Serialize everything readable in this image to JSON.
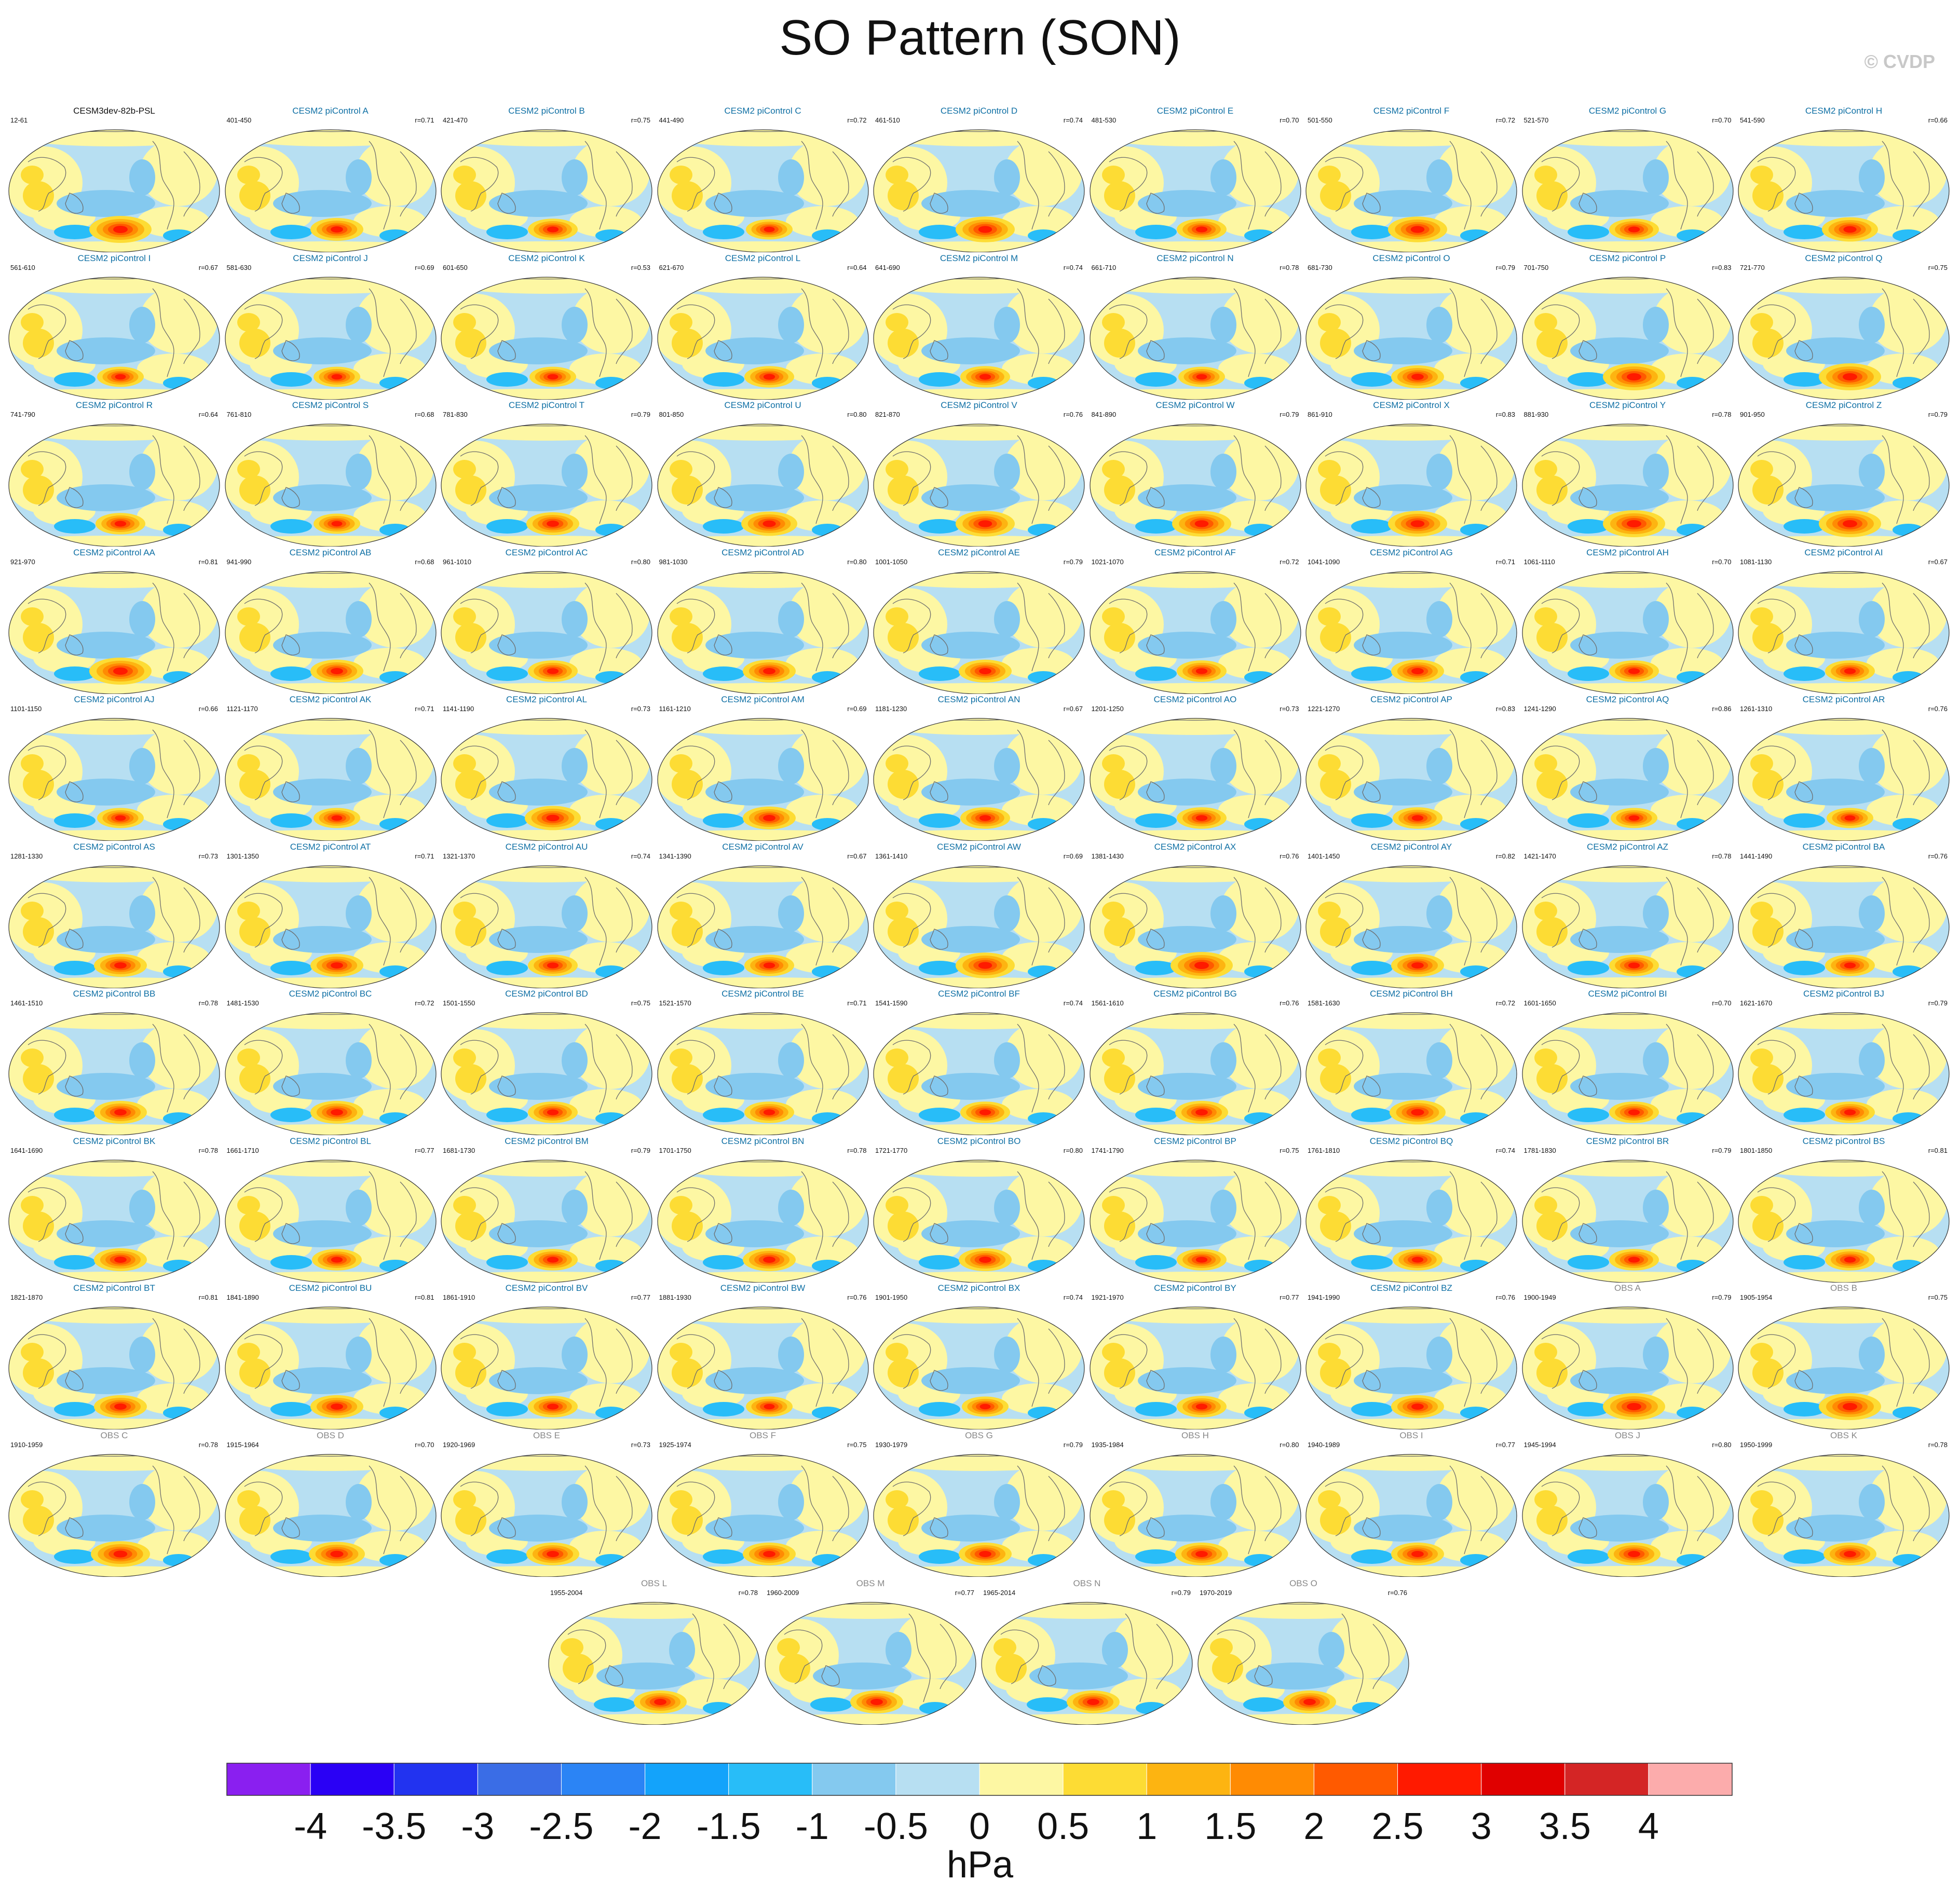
{
  "title": "SO Pattern (SON)",
  "watermark": "© CVDP",
  "panels": [
    {
      "name": "CESM3dev-82b-PSL",
      "years": "12-61",
      "corr": "",
      "kind": "model",
      "peak": 1.0
    },
    {
      "name": "CESM2 piControl A",
      "years": "401-450",
      "corr": "r=0.71",
      "kind": "pi",
      "peak": 0.85
    },
    {
      "name": "CESM2 piControl B",
      "years": "421-470",
      "corr": "r=0.75",
      "kind": "pi",
      "peak": 0.8
    },
    {
      "name": "CESM2 piControl C",
      "years": "441-490",
      "corr": "r=0.72",
      "kind": "pi",
      "peak": 0.75
    },
    {
      "name": "CESM2 piControl D",
      "years": "461-510",
      "corr": "r=0.74",
      "kind": "pi",
      "peak": 0.95
    },
    {
      "name": "CESM2 piControl E",
      "years": "481-530",
      "corr": "r=0.70",
      "kind": "pi",
      "peak": 0.8
    },
    {
      "name": "CESM2 piControl F",
      "years": "501-550",
      "corr": "r=0.72",
      "kind": "pi",
      "peak": 0.95
    },
    {
      "name": "CESM2 piControl G",
      "years": "521-570",
      "corr": "r=0.70",
      "kind": "pi",
      "peak": 0.8
    },
    {
      "name": "CESM2 piControl H",
      "years": "541-590",
      "corr": "r=0.66",
      "kind": "pi",
      "peak": 0.9
    },
    {
      "name": "CESM2 piControl I",
      "years": "561-610",
      "corr": "r=0.67",
      "kind": "pi",
      "peak": 0.75
    },
    {
      "name": "CESM2 piControl J",
      "years": "581-630",
      "corr": "r=0.69",
      "kind": "pi",
      "peak": 0.75
    },
    {
      "name": "CESM2 piControl K",
      "years": "601-650",
      "corr": "r=0.53",
      "kind": "pi",
      "peak": 0.75
    },
    {
      "name": "CESM2 piControl L",
      "years": "621-670",
      "corr": "r=0.64",
      "kind": "pi",
      "peak": 0.8
    },
    {
      "name": "CESM2 piControl M",
      "years": "641-690",
      "corr": "r=0.74",
      "kind": "pi",
      "peak": 0.8
    },
    {
      "name": "CESM2 piControl N",
      "years": "661-710",
      "corr": "r=0.78",
      "kind": "pi",
      "peak": 0.75
    },
    {
      "name": "CESM2 piControl O",
      "years": "681-730",
      "corr": "r=0.79",
      "kind": "pi",
      "peak": 0.85
    },
    {
      "name": "CESM2 piControl P",
      "years": "701-750",
      "corr": "r=0.83",
      "kind": "pi",
      "peak": 1.0
    },
    {
      "name": "CESM2 piControl Q",
      "years": "721-770",
      "corr": "r=0.75",
      "kind": "pi",
      "peak": 1.0
    },
    {
      "name": "CESM2 piControl R",
      "years": "741-790",
      "corr": "r=0.64",
      "kind": "pi",
      "peak": 0.8
    },
    {
      "name": "CESM2 piControl S",
      "years": "761-810",
      "corr": "r=0.68",
      "kind": "pi",
      "peak": 0.75
    },
    {
      "name": "CESM2 piControl T",
      "years": "781-830",
      "corr": "r=0.79",
      "kind": "pi",
      "peak": 0.85
    },
    {
      "name": "CESM2 piControl U",
      "years": "801-850",
      "corr": "r=0.80",
      "kind": "pi",
      "peak": 0.9
    },
    {
      "name": "CESM2 piControl V",
      "years": "821-870",
      "corr": "r=0.76",
      "kind": "pi",
      "peak": 0.95
    },
    {
      "name": "CESM2 piControl W",
      "years": "841-890",
      "corr": "r=0.79",
      "kind": "pi",
      "peak": 0.95
    },
    {
      "name": "CESM2 piControl X",
      "years": "861-910",
      "corr": "r=0.83",
      "kind": "pi",
      "peak": 0.95
    },
    {
      "name": "CESM2 piControl Y",
      "years": "881-930",
      "corr": "r=0.78",
      "kind": "pi",
      "peak": 1.0
    },
    {
      "name": "CESM2 piControl Z",
      "years": "901-950",
      "corr": "r=0.79",
      "kind": "pi",
      "peak": 1.0
    },
    {
      "name": "CESM2 piControl AA",
      "years": "921-970",
      "corr": "r=0.81",
      "kind": "pi",
      "peak": 1.0
    },
    {
      "name": "CESM2 piControl AB",
      "years": "941-990",
      "corr": "r=0.68",
      "kind": "pi",
      "peak": 0.85
    },
    {
      "name": "CESM2 piControl AC",
      "years": "961-1010",
      "corr": "r=0.80",
      "kind": "pi",
      "peak": 0.8
    },
    {
      "name": "CESM2 piControl AD",
      "years": "981-1030",
      "corr": "r=0.80",
      "kind": "pi",
      "peak": 0.85
    },
    {
      "name": "CESM2 piControl AE",
      "years": "1001-1050",
      "corr": "r=0.79",
      "kind": "pi",
      "peak": 0.85
    },
    {
      "name": "CESM2 piControl AF",
      "years": "1021-1070",
      "corr": "r=0.72",
      "kind": "pi",
      "peak": 0.8
    },
    {
      "name": "CESM2 piControl AG",
      "years": "1041-1090",
      "corr": "r=0.71",
      "kind": "pi",
      "peak": 0.85
    },
    {
      "name": "CESM2 piControl AH",
      "years": "1061-1110",
      "corr": "r=0.70",
      "kind": "pi",
      "peak": 0.8
    },
    {
      "name": "CESM2 piControl AI",
      "years": "1081-1130",
      "corr": "r=0.67",
      "kind": "pi",
      "peak": 0.8
    },
    {
      "name": "CESM2 piControl AJ",
      "years": "1101-1150",
      "corr": "r=0.66",
      "kind": "pi",
      "peak": 0.75
    },
    {
      "name": "CESM2 piControl AK",
      "years": "1121-1170",
      "corr": "r=0.71",
      "kind": "pi",
      "peak": 0.75
    },
    {
      "name": "CESM2 piControl AL",
      "years": "1141-1190",
      "corr": "r=0.73",
      "kind": "pi",
      "peak": 0.9
    },
    {
      "name": "CESM2 piControl AM",
      "years": "1161-1210",
      "corr": "r=0.69",
      "kind": "pi",
      "peak": 0.85
    },
    {
      "name": "CESM2 piControl AN",
      "years": "1181-1230",
      "corr": "r=0.67",
      "kind": "pi",
      "peak": 0.8
    },
    {
      "name": "CESM2 piControl AO",
      "years": "1201-1250",
      "corr": "r=0.73",
      "kind": "pi",
      "peak": 0.8
    },
    {
      "name": "CESM2 piControl AP",
      "years": "1221-1270",
      "corr": "r=0.83",
      "kind": "pi",
      "peak": 0.8
    },
    {
      "name": "CESM2 piControl AQ",
      "years": "1241-1290",
      "corr": "r=0.86",
      "kind": "pi",
      "peak": 0.75
    },
    {
      "name": "CESM2 piControl AR",
      "years": "1261-1310",
      "corr": "r=0.76",
      "kind": "pi",
      "peak": 0.75
    },
    {
      "name": "CESM2 piControl AS",
      "years": "1281-1330",
      "corr": "r=0.73",
      "kind": "pi",
      "peak": 0.85
    },
    {
      "name": "CESM2 piControl AT",
      "years": "1301-1350",
      "corr": "r=0.71",
      "kind": "pi",
      "peak": 0.85
    },
    {
      "name": "CESM2 piControl AU",
      "years": "1321-1370",
      "corr": "r=0.74",
      "kind": "pi",
      "peak": 0.8
    },
    {
      "name": "CESM2 piControl AV",
      "years": "1341-1390",
      "corr": "r=0.67",
      "kind": "pi",
      "peak": 0.8
    },
    {
      "name": "CESM2 piControl AW",
      "years": "1361-1410",
      "corr": "r=0.69",
      "kind": "pi",
      "peak": 0.95
    },
    {
      "name": "CESM2 piControl AX",
      "years": "1381-1430",
      "corr": "r=0.76",
      "kind": "pi",
      "peak": 1.0
    },
    {
      "name": "CESM2 piControl AY",
      "years": "1401-1450",
      "corr": "r=0.82",
      "kind": "pi",
      "peak": 0.85
    },
    {
      "name": "CESM2 piControl AZ",
      "years": "1421-1470",
      "corr": "r=0.78",
      "kind": "pi",
      "peak": 0.8
    },
    {
      "name": "CESM2 piControl BA",
      "years": "1441-1490",
      "corr": "r=0.76",
      "kind": "pi",
      "peak": 0.8
    },
    {
      "name": "CESM2 piControl BB",
      "years": "1461-1510",
      "corr": "r=0.78",
      "kind": "pi",
      "peak": 0.85
    },
    {
      "name": "CESM2 piControl BC",
      "years": "1481-1530",
      "corr": "r=0.72",
      "kind": "pi",
      "peak": 0.85
    },
    {
      "name": "CESM2 piControl BD",
      "years": "1501-1550",
      "corr": "r=0.75",
      "kind": "pi",
      "peak": 0.8
    },
    {
      "name": "CESM2 piControl BE",
      "years": "1521-1570",
      "corr": "r=0.71",
      "kind": "pi",
      "peak": 0.8
    },
    {
      "name": "CESM2 piControl BF",
      "years": "1541-1590",
      "corr": "r=0.74",
      "kind": "pi",
      "peak": 0.8
    },
    {
      "name": "CESM2 piControl BG",
      "years": "1561-1610",
      "corr": "r=0.76",
      "kind": "pi",
      "peak": 0.85
    },
    {
      "name": "CESM2 piControl BH",
      "years": "1581-1630",
      "corr": "r=0.72",
      "kind": "pi",
      "peak": 0.9
    },
    {
      "name": "CESM2 piControl BI",
      "years": "1601-1650",
      "corr": "r=0.70",
      "kind": "pi",
      "peak": 0.8
    },
    {
      "name": "CESM2 piControl BJ",
      "years": "1621-1670",
      "corr": "r=0.79",
      "kind": "pi",
      "peak": 0.8
    },
    {
      "name": "CESM2 piControl BK",
      "years": "1641-1690",
      "corr": "r=0.78",
      "kind": "pi",
      "peak": 0.85
    },
    {
      "name": "CESM2 piControl BL",
      "years": "1661-1710",
      "corr": "r=0.77",
      "kind": "pi",
      "peak": 0.8
    },
    {
      "name": "CESM2 piControl BM",
      "years": "1681-1730",
      "corr": "r=0.79",
      "kind": "pi",
      "peak": 0.8
    },
    {
      "name": "CESM2 piControl BN",
      "years": "1701-1750",
      "corr": "r=0.78",
      "kind": "pi",
      "peak": 0.85
    },
    {
      "name": "CESM2 piControl BO",
      "years": "1721-1770",
      "corr": "r=0.80",
      "kind": "pi",
      "peak": 0.85
    },
    {
      "name": "CESM2 piControl BP",
      "years": "1741-1790",
      "corr": "r=0.75",
      "kind": "pi",
      "peak": 0.8
    },
    {
      "name": "CESM2 piControl BQ",
      "years": "1761-1810",
      "corr": "r=0.74",
      "kind": "pi",
      "peak": 0.8
    },
    {
      "name": "CESM2 piControl BR",
      "years": "1781-1830",
      "corr": "r=0.79",
      "kind": "pi",
      "peak": 0.8
    },
    {
      "name": "CESM2 piControl BS",
      "years": "1801-1850",
      "corr": "r=0.81",
      "kind": "pi",
      "peak": 0.8
    },
    {
      "name": "CESM2 piControl BT",
      "years": "1821-1870",
      "corr": "r=0.81",
      "kind": "pi",
      "peak": 0.85
    },
    {
      "name": "CESM2 piControl BU",
      "years": "1841-1890",
      "corr": "r=0.81",
      "kind": "pi",
      "peak": 0.85
    },
    {
      "name": "CESM2 piControl BV",
      "years": "1861-1910",
      "corr": "r=0.77",
      "kind": "pi",
      "peak": 0.8
    },
    {
      "name": "CESM2 piControl BW",
      "years": "1881-1930",
      "corr": "r=0.76",
      "kind": "pi",
      "peak": 0.75
    },
    {
      "name": "CESM2 piControl BX",
      "years": "1901-1950",
      "corr": "r=0.74",
      "kind": "pi",
      "peak": 0.75
    },
    {
      "name": "CESM2 piControl BY",
      "years": "1921-1970",
      "corr": "r=0.77",
      "kind": "pi",
      "peak": 0.8
    },
    {
      "name": "CESM2 piControl BZ",
      "years": "1941-1990",
      "corr": "r=0.76",
      "kind": "pi",
      "peak": 0.85
    },
    {
      "name": "OBS A",
      "years": "1900-1949",
      "corr": "r=0.79",
      "kind": "obs",
      "peak": 1.0
    },
    {
      "name": "OBS B",
      "years": "1905-1954",
      "corr": "r=0.75",
      "kind": "obs",
      "peak": 1.0
    },
    {
      "name": "OBS C",
      "years": "1910-1959",
      "corr": "r=0.78",
      "kind": "obs",
      "peak": 0.95
    },
    {
      "name": "OBS D",
      "years": "1915-1964",
      "corr": "r=0.70",
      "kind": "obs",
      "peak": 0.9
    },
    {
      "name": "OBS E",
      "years": "1920-1969",
      "corr": "r=0.73",
      "kind": "obs",
      "peak": 0.85
    },
    {
      "name": "OBS F",
      "years": "1925-1974",
      "corr": "r=0.75",
      "kind": "obs",
      "peak": 0.85
    },
    {
      "name": "OBS G",
      "years": "1930-1979",
      "corr": "r=0.79",
      "kind": "obs",
      "peak": 0.85
    },
    {
      "name": "OBS H",
      "years": "1935-1984",
      "corr": "r=0.80",
      "kind": "obs",
      "peak": 0.85
    },
    {
      "name": "OBS I",
      "years": "1940-1989",
      "corr": "r=0.77",
      "kind": "obs",
      "peak": 0.85
    },
    {
      "name": "OBS J",
      "years": "1945-1994",
      "corr": "r=0.80",
      "kind": "obs",
      "peak": 0.85
    },
    {
      "name": "OBS K",
      "years": "1950-1999",
      "corr": "r=0.78",
      "kind": "obs",
      "peak": 0.85
    },
    {
      "name": "OBS L",
      "years": "1955-2004",
      "corr": "r=0.78",
      "kind": "obs",
      "peak": 0.85
    },
    {
      "name": "OBS M",
      "years": "1960-2009",
      "corr": "r=0.77",
      "kind": "obs",
      "peak": 0.85
    },
    {
      "name": "OBS N",
      "years": "1965-2014",
      "corr": "r=0.79",
      "kind": "obs",
      "peak": 0.85
    },
    {
      "name": "OBS O",
      "years": "1970-2019",
      "corr": "r=0.76",
      "kind": "obs",
      "peak": 0.85
    }
  ],
  "colorbar": {
    "colors": [
      "#8a1ff0",
      "#2a00f5",
      "#2233f0",
      "#3a6de6",
      "#2b84f5",
      "#13a3fb",
      "#28bdf8",
      "#84c9ef",
      "#b7dff2",
      "#fdf7a3",
      "#fddc34",
      "#fdb411",
      "#ff8b03",
      "#ff5a00",
      "#ff1a00",
      "#e00000",
      "#d42525",
      "#fcacac"
    ],
    "tick_labels": [
      "-4",
      "-3.5",
      "-3",
      "-2.5",
      "-2",
      "-1.5",
      "-1",
      "-0.5",
      "0",
      "0.5",
      "1",
      "1.5",
      "2",
      "2.5",
      "3",
      "3.5",
      "4"
    ],
    "units": "hPa"
  }
}
